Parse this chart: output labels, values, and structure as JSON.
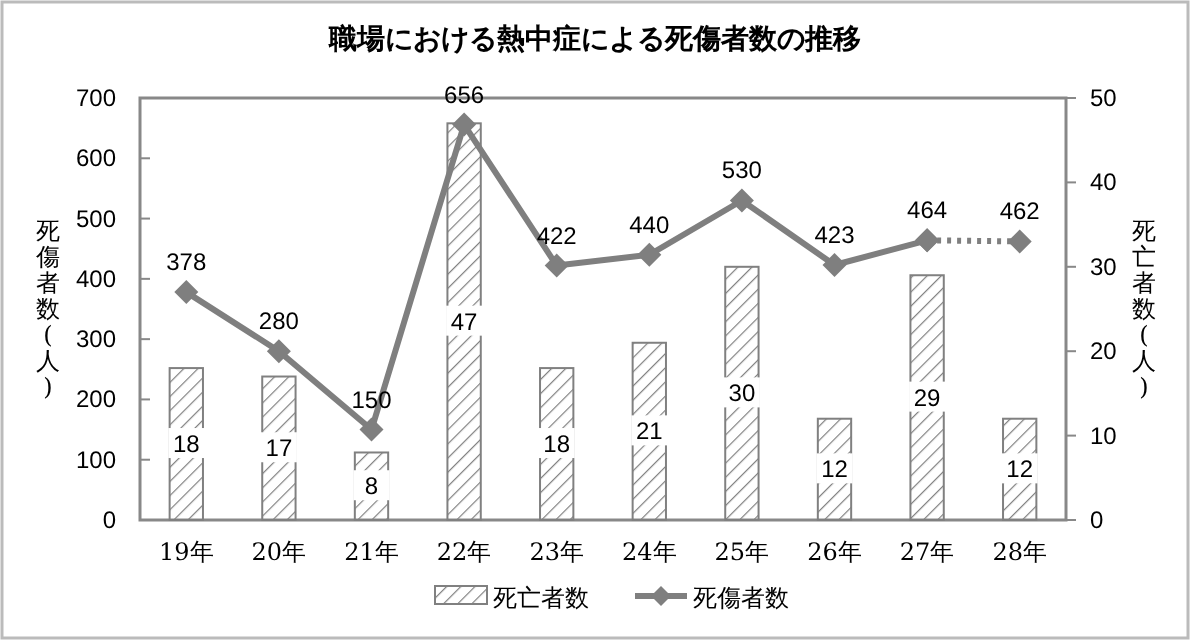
{
  "chart_data": {
    "type": "bar",
    "title": "職場における熱中症による死傷者数の推移",
    "categories": [
      "19年",
      "20年",
      "21年",
      "22年",
      "23年",
      "24年",
      "25年",
      "26年",
      "27年",
      "28年"
    ],
    "series": [
      {
        "name": "死亡者数",
        "axis": "y2",
        "color": "#808080",
        "values": [
          18,
          17,
          8,
          47,
          18,
          21,
          30,
          12,
          29,
          12
        ],
        "value_labels": [
          "18",
          "17",
          "8",
          "47",
          "18",
          "21",
          "30",
          "12",
          "29",
          "12"
        ]
      },
      {
        "name": "死傷者数",
        "type": "line",
        "color": "#7f7f7f",
        "marker": "diamond",
        "line_style": "solid",
        "values": [
          378,
          280,
          150,
          656,
          422,
          440,
          530,
          423,
          464,
          null
        ],
        "value_labels": [
          "378",
          "280",
          "150",
          "656",
          "422",
          "440",
          "530",
          "423",
          "464",
          null
        ]
      },
      {
        "type": "line",
        "color": "#7f7f7f",
        "marker": "diamond",
        "line_style": "dotted",
        "values": [
          null,
          null,
          null,
          null,
          null,
          null,
          null,
          null,
          464,
          462
        ],
        "value_labels": [
          null,
          null,
          null,
          null,
          null,
          null,
          null,
          null,
          null,
          "462"
        ]
      }
    ],
    "ylabel": "死傷者数(人)",
    "y2label": "死亡者数(人)",
    "ylim": [
      0,
      700
    ],
    "yticks": [
      0,
      100,
      200,
      300,
      400,
      500,
      600,
      700
    ],
    "y2lim": [
      0,
      50
    ],
    "y2ticks": [
      0,
      10,
      20,
      30,
      40,
      50
    ],
    "grid": false,
    "legend": "bottom"
  }
}
